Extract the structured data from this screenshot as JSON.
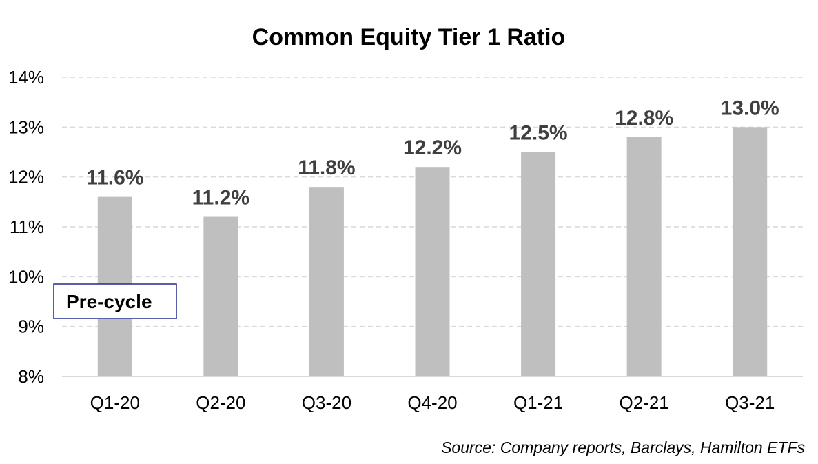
{
  "chart_data": {
    "type": "bar",
    "title": "Common Equity Tier 1 Ratio",
    "categories": [
      "Q1-20",
      "Q2-20",
      "Q3-20",
      "Q4-20",
      "Q1-21",
      "Q2-21",
      "Q3-21"
    ],
    "values": [
      11.6,
      11.2,
      11.8,
      12.2,
      12.5,
      12.8,
      13.0
    ],
    "data_labels": [
      "11.6%",
      "11.2%",
      "11.8%",
      "12.2%",
      "12.5%",
      "12.8%",
      "13.0%"
    ],
    "ylim": [
      8,
      14
    ],
    "yticks": [
      8,
      9,
      10,
      11,
      12,
      13,
      14
    ],
    "ytick_labels": [
      "8%",
      "9%",
      "10%",
      "11%",
      "12%",
      "13%",
      "14%"
    ],
    "xlabel": "",
    "ylabel": "",
    "grid": true,
    "legend": "none",
    "bar_color": "#bfbfbf",
    "annotation": "Pre-cycle",
    "source": "Source: Company reports, Barclays, Hamilton ETFs"
  }
}
